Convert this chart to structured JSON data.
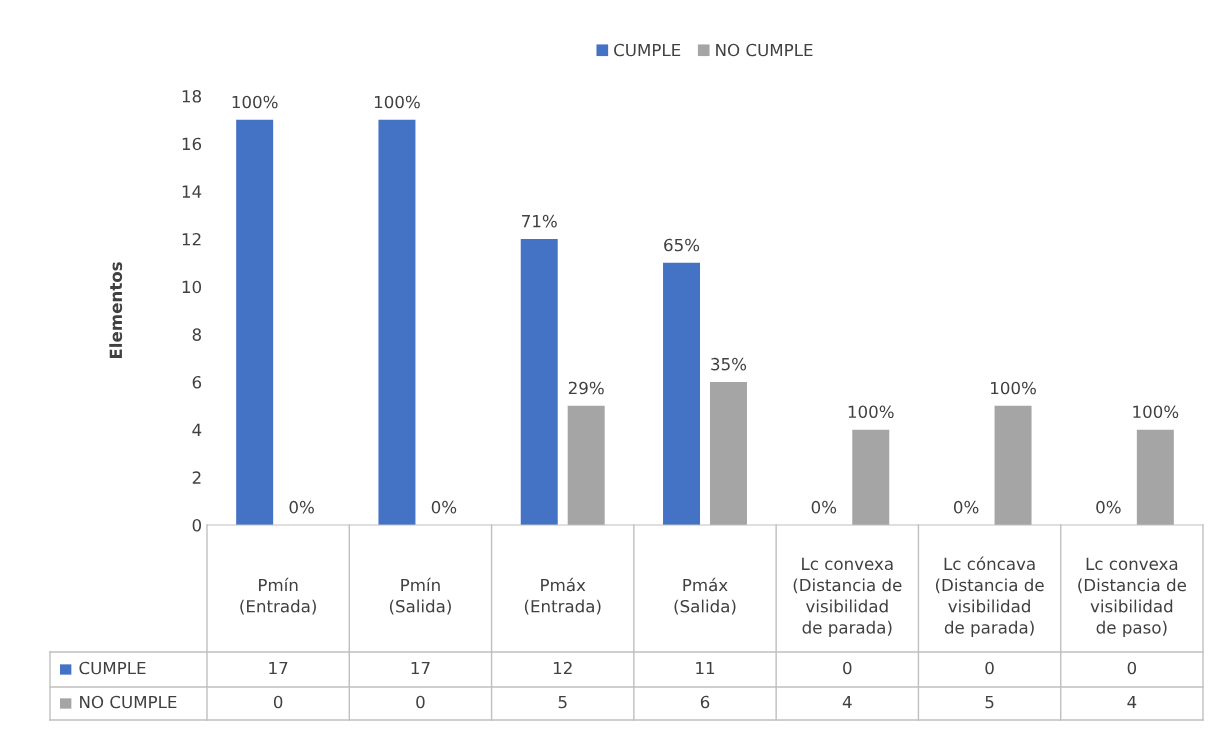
{
  "chart_data": {
    "type": "bar",
    "ylabel": "Elementos",
    "categories": [
      "Pmín\n(Entrada)",
      "Pmín\n(Salida)",
      "Pmáx\n(Entrada)",
      "Pmáx\n(Salida)",
      "Lc convexa\n(Distancia de\nvisibilidad\nde parada)",
      "Lc cóncava\n(Distancia de\nvisibilidad\nde parada)",
      "Lc convexa\n(Distancia de\nvisibilidad\nde paso)"
    ],
    "series": [
      {
        "name": "CUMPLE",
        "color": "#4472c4",
        "values": [
          17,
          17,
          12,
          11,
          0,
          0,
          0
        ]
      },
      {
        "name": "NO CUMPLE",
        "color": "#a5a5a5",
        "values": [
          0,
          0,
          5,
          6,
          4,
          5,
          4
        ]
      }
    ],
    "annotations": [
      "100%",
      "100%",
      "71%",
      "65%",
      "0%",
      "0%",
      "0%",
      "0%",
      "0%",
      "29%",
      "35%",
      "100%",
      "100%",
      "100%"
    ],
    "ylim": [
      0,
      18
    ],
    "yticks": [
      0,
      2,
      4,
      6,
      8,
      10,
      12,
      14,
      16,
      18
    ],
    "legend": "top",
    "grid": false,
    "data_labels": true
  }
}
